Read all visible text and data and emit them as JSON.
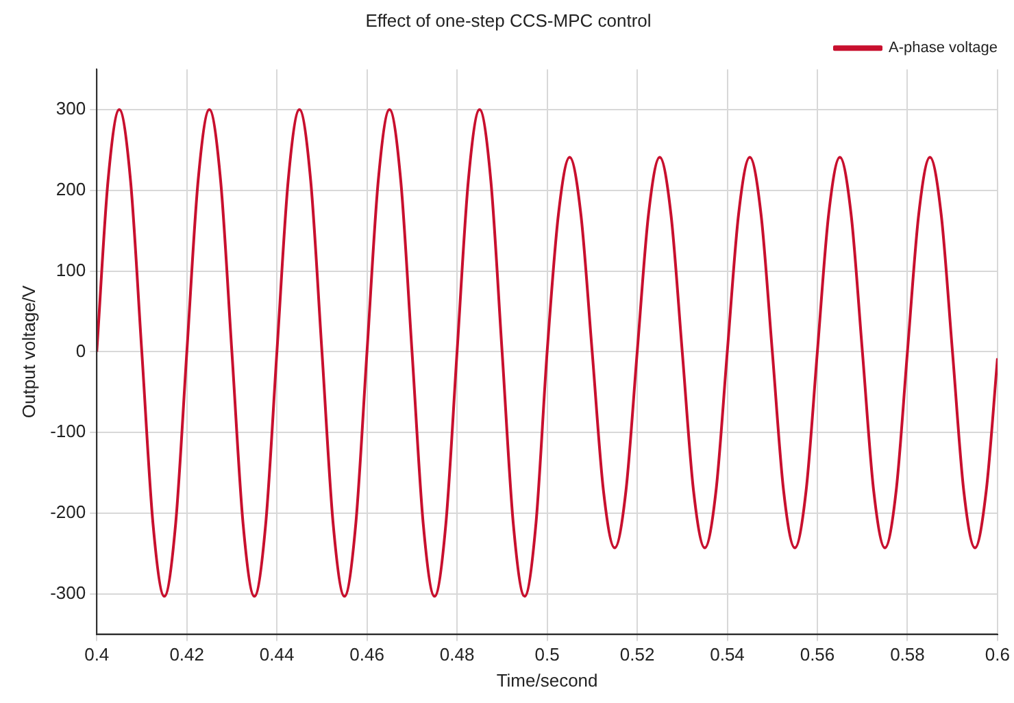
{
  "chart_data": {
    "type": "line",
    "title": "Effect of one-step CCS-MPC control",
    "xlabel": "Time/second",
    "ylabel": "Output voltage/V",
    "x": [
      0.4,
      0.4025,
      0.405,
      0.4075,
      0.41,
      0.4125,
      0.415,
      0.4175,
      0.42,
      0.4225,
      0.425,
      0.4275,
      0.43,
      0.4325,
      0.435,
      0.4375,
      0.44,
      0.4425,
      0.445,
      0.4475,
      0.45,
      0.4525,
      0.455,
      0.4575,
      0.46,
      0.4625,
      0.465,
      0.4675,
      0.47,
      0.4725,
      0.475,
      0.4775,
      0.48,
      0.4825,
      0.485,
      0.4875,
      0.49,
      0.4925,
      0.495,
      0.4975,
      0.5,
      0.5025,
      0.505,
      0.5075,
      0.51,
      0.5125,
      0.515,
      0.5175,
      0.52,
      0.5225,
      0.525,
      0.5275,
      0.53,
      0.5325,
      0.535,
      0.5375,
      0.54,
      0.5425,
      0.545,
      0.5475,
      0.55,
      0.5525,
      0.555,
      0.5575,
      0.56,
      0.5625,
      0.565,
      0.5675,
      0.57,
      0.5725,
      0.575,
      0.5775,
      0.58,
      0.5825,
      0.585,
      0.5875,
      0.59,
      0.5925,
      0.595,
      0.5975,
      0.6
    ],
    "series": [
      {
        "name": "A-phase voltage",
        "color": "#c8102e",
        "values": [
          0,
          212,
          300,
          212,
          0,
          -214,
          -303,
          -214,
          0,
          212,
          300,
          212,
          0,
          -214,
          -303,
          -214,
          0,
          212,
          300,
          212,
          0,
          -214,
          -303,
          -214,
          0,
          212,
          300,
          212,
          0,
          -214,
          -303,
          -214,
          0,
          212,
          300,
          212,
          0,
          -214,
          -303,
          -214,
          0,
          170,
          241,
          170,
          0,
          -172,
          -243,
          -172,
          0,
          170,
          241,
          170,
          0,
          -172,
          -243,
          -172,
          0,
          170,
          241,
          170,
          0,
          -172,
          -243,
          -172,
          0,
          170,
          241,
          170,
          0,
          -172,
          -243,
          -172,
          0,
          170,
          241,
          170,
          0,
          -172,
          -243,
          -172,
          -8
        ]
      }
    ],
    "xlim": [
      0.4,
      0.6
    ],
    "xticks": [
      0.4,
      0.42,
      0.44,
      0.46,
      0.48,
      0.5,
      0.52,
      0.54,
      0.56,
      0.58,
      0.6
    ],
    "ylim": [
      -350,
      350
    ],
    "yticks": [
      -300,
      -200,
      -100,
      0,
      100,
      200,
      300
    ],
    "grid": true,
    "legend": "top right",
    "marker": "none",
    "line_style": "solid"
  }
}
